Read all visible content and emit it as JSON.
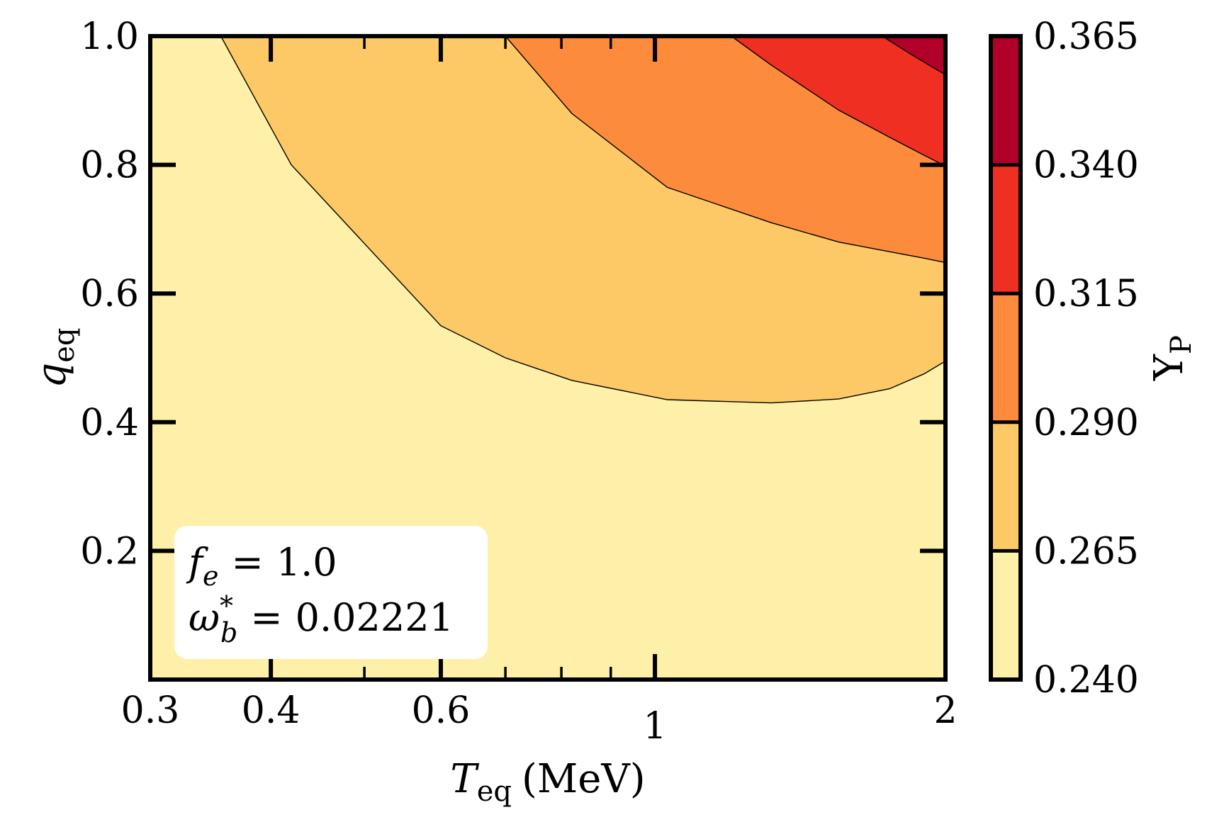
{
  "chart_data": {
    "type": "contourf",
    "x_axis": {
      "label_symbol": "T",
      "label_subscript": "eq",
      "label_unit": "(MeV)",
      "scale": "log",
      "range": [
        0.3,
        2.0
      ],
      "major_ticks": [
        {
          "value": 0.3,
          "label": "0.3"
        },
        {
          "value": 0.4,
          "label": "0.4"
        },
        {
          "value": 0.6,
          "label": "0.6"
        },
        {
          "value": 1.0,
          "label": "1"
        },
        {
          "value": 2.0,
          "label": "2"
        }
      ],
      "minor_ticks": [
        0.5,
        0.7,
        0.8,
        0.9
      ]
    },
    "y_axis": {
      "label_symbol": "q",
      "label_subscript": "eq",
      "scale": "linear",
      "range": [
        0.0,
        1.0
      ],
      "ticks": [
        {
          "value": 0.2,
          "label": "0.2"
        },
        {
          "value": 0.4,
          "label": "0.4"
        },
        {
          "value": 0.6,
          "label": "0.6"
        },
        {
          "value": 0.8,
          "label": "0.8"
        },
        {
          "value": 1.0,
          "label": "1.0"
        }
      ]
    },
    "colorbar": {
      "label": "Y",
      "label_subscript": "P",
      "levels": [
        "0.240",
        "0.265",
        "0.290",
        "0.315",
        "0.340",
        "0.365"
      ],
      "colors": [
        "#FEF0A8",
        "#FDC966",
        "#FC8B3C",
        "#EE2F22",
        "#B1002A"
      ]
    },
    "contour_lines": [
      {
        "level": 0.265,
        "points": [
          [
            0.355,
            1.0
          ],
          [
            0.42,
            0.8
          ],
          [
            0.6,
            0.55
          ],
          [
            0.7,
            0.5
          ],
          [
            0.82,
            0.465
          ],
          [
            1.03,
            0.435
          ],
          [
            1.32,
            0.43
          ],
          [
            1.55,
            0.436
          ],
          [
            1.75,
            0.452
          ],
          [
            1.9,
            0.475
          ],
          [
            2.0,
            0.495
          ]
        ]
      },
      {
        "level": 0.29,
        "points": [
          [
            0.7,
            1.0
          ],
          [
            0.82,
            0.88
          ],
          [
            1.03,
            0.765
          ],
          [
            1.32,
            0.71
          ],
          [
            1.55,
            0.68
          ],
          [
            1.75,
            0.665
          ],
          [
            1.9,
            0.655
          ],
          [
            2.0,
            0.648
          ]
        ]
      },
      {
        "level": 0.315,
        "points": [
          [
            1.2,
            1.0
          ],
          [
            1.32,
            0.955
          ],
          [
            1.55,
            0.885
          ],
          [
            1.75,
            0.843
          ],
          [
            1.9,
            0.815
          ],
          [
            2.0,
            0.798
          ]
        ]
      },
      {
        "level": 0.34,
        "points": [
          [
            1.72,
            1.0
          ],
          [
            1.85,
            0.97
          ],
          [
            2.0,
            0.94
          ]
        ]
      }
    ],
    "annotation": {
      "line1": {
        "symbol": "f",
        "subscript": "e",
        "equals": "=",
        "value": "1.0"
      },
      "line2": {
        "symbol": "ω",
        "subscript": "b",
        "superscript": "*",
        "equals": "=",
        "value": "0.02221"
      }
    }
  }
}
